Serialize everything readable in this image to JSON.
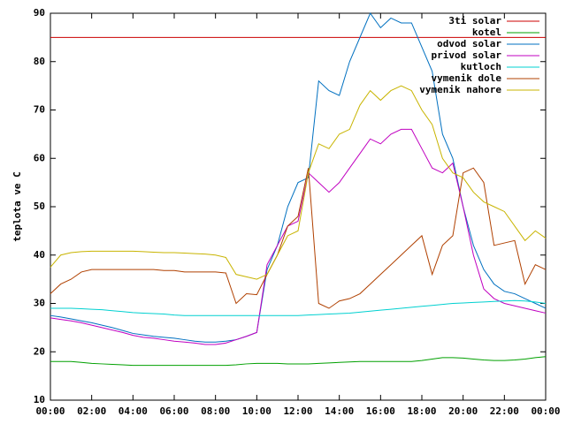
{
  "chart_data": {
    "type": "line",
    "ylabel": "teplota ve C",
    "x": [
      0,
      0.5,
      1,
      1.5,
      2,
      2.5,
      3,
      3.5,
      4,
      4.5,
      5,
      5.5,
      6,
      6.5,
      7,
      7.5,
      8,
      8.5,
      9,
      9.5,
      10,
      10.5,
      11,
      11.5,
      12,
      12.5,
      13,
      13.5,
      14,
      14.5,
      15,
      15.5,
      16,
      16.5,
      17,
      17.5,
      18,
      18.5,
      19,
      19.5,
      20,
      20.5,
      21,
      21.5,
      22,
      22.5,
      23,
      23.5,
      24
    ],
    "xlim": [
      0,
      24
    ],
    "xticks": [
      {
        "value": 0,
        "label": "00:00"
      },
      {
        "value": 2,
        "label": "02:00"
      },
      {
        "value": 4,
        "label": "04:00"
      },
      {
        "value": 6,
        "label": "06:00"
      },
      {
        "value": 8,
        "label": "08:00"
      },
      {
        "value": 10,
        "label": "10:00"
      },
      {
        "value": 12,
        "label": "12:00"
      },
      {
        "value": 14,
        "label": "14:00"
      },
      {
        "value": 16,
        "label": "16:00"
      },
      {
        "value": 18,
        "label": "18:00"
      },
      {
        "value": 20,
        "label": "20:00"
      },
      {
        "value": 22,
        "label": "22:00"
      },
      {
        "value": 24,
        "label": "00:00"
      }
    ],
    "ylim": [
      10,
      90
    ],
    "yticks": [
      10,
      20,
      30,
      40,
      50,
      60,
      70,
      80,
      90
    ],
    "grid": false,
    "legend": "top-right",
    "series": [
      {
        "name": "3ti solar",
        "color": "#cc0000",
        "values": [
          85,
          85,
          85,
          85,
          85,
          85,
          85,
          85,
          85,
          85,
          85,
          85,
          85,
          85,
          85,
          85,
          85,
          85,
          85,
          85,
          85,
          85,
          85,
          85,
          85,
          85,
          85,
          85,
          85,
          85,
          85,
          85,
          85,
          85,
          85,
          85,
          85,
          85,
          85,
          85,
          85,
          85,
          85,
          85,
          85,
          85,
          85,
          85,
          85
        ]
      },
      {
        "name": "kotel",
        "color": "#00a000",
        "values": [
          18,
          18,
          18,
          17.8,
          17.6,
          17.5,
          17.4,
          17.3,
          17.2,
          17.2,
          17.2,
          17.2,
          17.2,
          17.2,
          17.2,
          17.2,
          17.2,
          17.2,
          17.3,
          17.5,
          17.6,
          17.6,
          17.6,
          17.5,
          17.5,
          17.5,
          17.6,
          17.7,
          17.8,
          17.9,
          18,
          18,
          18,
          18,
          18,
          18,
          18.2,
          18.5,
          18.8,
          18.8,
          18.7,
          18.5,
          18.3,
          18.2,
          18.2,
          18.3,
          18.5,
          18.8,
          19
        ]
      },
      {
        "name": "odvod solar",
        "color": "#0070c0",
        "values": [
          27.5,
          27.2,
          26.8,
          26.4,
          26,
          25.5,
          25,
          24.4,
          23.8,
          23.5,
          23.2,
          23,
          22.8,
          22.5,
          22.2,
          22,
          22,
          22.2,
          22.5,
          23.2,
          24,
          37,
          42,
          50,
          55,
          56,
          76,
          74,
          73,
          80,
          85,
          90,
          87,
          89,
          88,
          88,
          83,
          78,
          65,
          60,
          50,
          42,
          37,
          34,
          32.5,
          32,
          31,
          30,
          29
        ]
      },
      {
        "name": "privod solar",
        "color": "#c000c0",
        "values": [
          27,
          26.7,
          26.4,
          26,
          25.5,
          25,
          24.5,
          24,
          23.4,
          23,
          22.8,
          22.5,
          22.2,
          22,
          21.8,
          21.5,
          21.5,
          21.8,
          22.5,
          23.2,
          24,
          38,
          42,
          46,
          47,
          57,
          55,
          53,
          55,
          58,
          61,
          64,
          63,
          65,
          66,
          66,
          62,
          58,
          57,
          59,
          50,
          40,
          33,
          31,
          30,
          29.5,
          29,
          28.5,
          28
        ]
      },
      {
        "name": "kutloch",
        "color": "#00d0d0",
        "values": [
          29,
          29,
          29,
          28.9,
          28.8,
          28.7,
          28.5,
          28.3,
          28.1,
          28,
          27.9,
          27.8,
          27.6,
          27.5,
          27.5,
          27.5,
          27.5,
          27.5,
          27.5,
          27.5,
          27.5,
          27.5,
          27.5,
          27.5,
          27.5,
          27.6,
          27.7,
          27.8,
          27.9,
          28,
          28.2,
          28.4,
          28.6,
          28.8,
          29,
          29.2,
          29.4,
          29.6,
          29.8,
          30,
          30.1,
          30.2,
          30.3,
          30.4,
          30.5,
          30.6,
          30.5,
          30.3,
          30
        ]
      },
      {
        "name": "vymenik dole",
        "color": "#b04000",
        "values": [
          32,
          34,
          35,
          36.5,
          37,
          37,
          37,
          37,
          37,
          37,
          37,
          36.8,
          36.8,
          36.5,
          36.5,
          36.5,
          36.5,
          36.3,
          30,
          32,
          31.8,
          36,
          40,
          46,
          48,
          58,
          30,
          29,
          30.5,
          31,
          32,
          34,
          36,
          38,
          40,
          42,
          44,
          36,
          42,
          44,
          57,
          58,
          55,
          42,
          42.5,
          43,
          34,
          38,
          37
        ]
      },
      {
        "name": "vymenik nahore",
        "color": "#c8b400",
        "values": [
          37.5,
          40,
          40.5,
          40.7,
          40.8,
          40.8,
          40.8,
          40.8,
          40.8,
          40.7,
          40.6,
          40.5,
          40.5,
          40.4,
          40.3,
          40.2,
          40,
          39.5,
          36,
          35.5,
          35,
          36,
          40,
          44,
          45,
          57,
          63,
          62,
          65,
          66,
          71,
          74,
          72,
          74,
          75,
          74,
          70,
          67,
          60,
          57,
          56,
          53,
          51,
          50,
          49,
          46,
          43,
          45,
          43.5
        ]
      }
    ]
  }
}
